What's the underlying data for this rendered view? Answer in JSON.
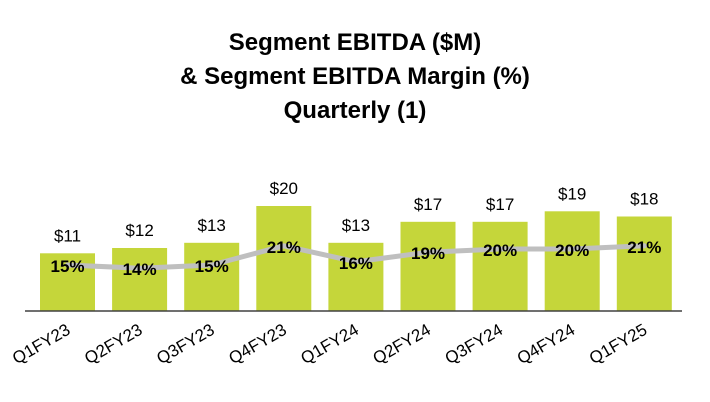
{
  "chart_data": {
    "type": "bar",
    "title_lines": [
      "Segment EBITDA ($M)",
      "& Segment EBITDA Margin (%)",
      "Quarterly (1)"
    ],
    "categories": [
      "Q1FY23",
      "Q2FY23",
      "Q3FY23",
      "Q4FY23",
      "Q1FY24",
      "Q2FY24",
      "Q3FY24",
      "Q4FY24",
      "Q1FY25"
    ],
    "series": [
      {
        "values": [
          11,
          12,
          13,
          20,
          13,
          17,
          17,
          19,
          18
        ],
        "labels": [
          "$11",
          "$12",
          "$13",
          "$20",
          "$13",
          "$17",
          "$17",
          "$19",
          "$18"
        ],
        "color": "#c5d63a"
      },
      {
        "type": "line",
        "values": [
          15,
          14,
          15,
          21,
          16,
          19,
          20,
          20,
          21
        ],
        "labels": [
          "15%",
          "14%",
          "15%",
          "21%",
          "16%",
          "19%",
          "20%",
          "20%",
          "21%"
        ],
        "color": "#bfbfbf"
      }
    ],
    "xlabel": "",
    "ylabel": "",
    "grid": false,
    "axis_color": "#404040"
  }
}
